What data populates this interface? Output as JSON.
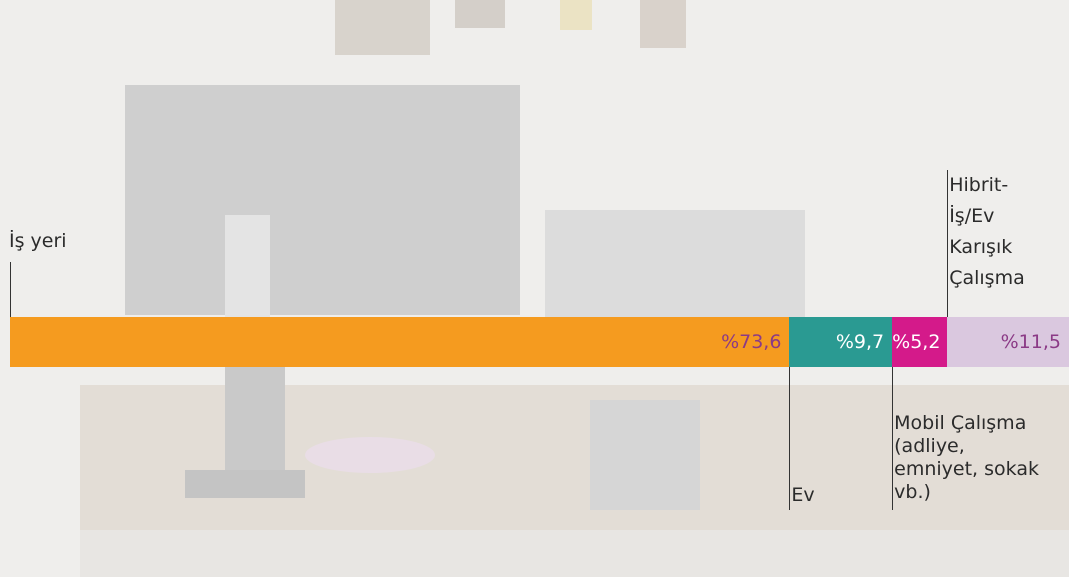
{
  "chart_data": {
    "type": "bar",
    "stacked": true,
    "orientation": "horizontal",
    "xlim": [
      0,
      100
    ],
    "series": [
      {
        "name": "İş yeri",
        "color": "#f59b1f",
        "values": [
          73.6
        ],
        "value_labels": [
          "%73,6"
        ]
      },
      {
        "name": "Ev",
        "color": "#2a9a92",
        "values": [
          9.7
        ],
        "value_labels": [
          "%9,7"
        ]
      },
      {
        "name": "Mobil Çalışma (adliye, emniyet, sokak vb.)",
        "color": "#d41a8a",
        "values": [
          5.2
        ],
        "value_labels": [
          "%5,2"
        ]
      },
      {
        "name": "Hibrit-İş/Ev Karışık Çalışma",
        "color": "#dac8df",
        "values": [
          11.5
        ],
        "value_labels": [
          "%11,5"
        ]
      }
    ]
  }
}
